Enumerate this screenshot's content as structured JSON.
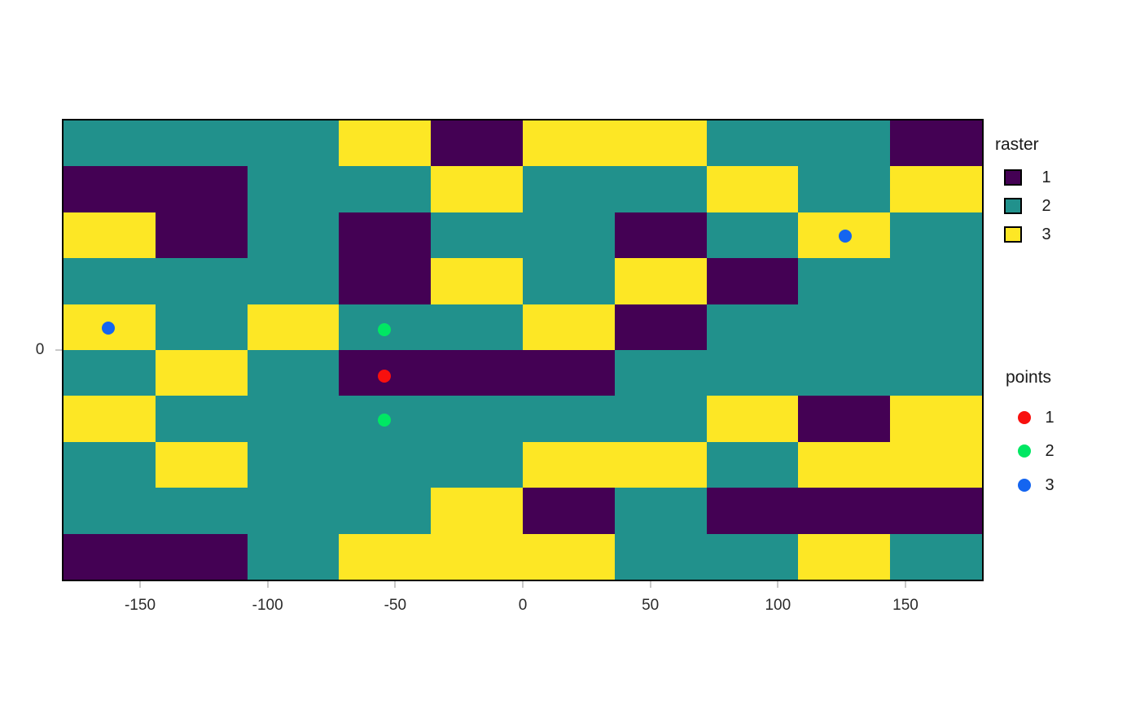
{
  "chart_data": {
    "type": "heatmap",
    "title": "",
    "xlabel": "",
    "ylabel": "",
    "x_range": [
      -180,
      180
    ],
    "y_range": [
      -90,
      90
    ],
    "x_ticks": [
      "-150",
      "-100",
      "-50",
      "0",
      "50",
      "100",
      "150"
    ],
    "x_tick_values": [
      -150,
      -100,
      -50,
      0,
      50,
      100,
      150
    ],
    "y_ticks": [
      "0"
    ],
    "y_tick_values": [
      0
    ],
    "grid_lines": "off",
    "raster": {
      "nrows": 10,
      "ncols": 10,
      "colors": {
        "1": "#440154",
        "2": "#21918c",
        "3": "#fde725"
      },
      "grid": [
        [
          2,
          2,
          2,
          3,
          1,
          3,
          3,
          2,
          2,
          1
        ],
        [
          1,
          1,
          2,
          2,
          3,
          2,
          2,
          3,
          2,
          3
        ],
        [
          3,
          1,
          2,
          1,
          2,
          2,
          1,
          2,
          3,
          2
        ],
        [
          2,
          2,
          2,
          1,
          3,
          2,
          3,
          1,
          2,
          2
        ],
        [
          3,
          2,
          3,
          2,
          2,
          3,
          1,
          2,
          2,
          2
        ],
        [
          2,
          3,
          2,
          1,
          1,
          1,
          2,
          2,
          2,
          2
        ],
        [
          3,
          2,
          2,
          2,
          2,
          2,
          2,
          3,
          1,
          3
        ],
        [
          2,
          3,
          2,
          2,
          2,
          3,
          3,
          2,
          3,
          3
        ],
        [
          2,
          2,
          2,
          2,
          3,
          1,
          2,
          1,
          1,
          1
        ],
        [
          1,
          1,
          2,
          3,
          3,
          3,
          2,
          2,
          3,
          2
        ]
      ]
    },
    "point_colors": {
      "1": "#f8100e",
      "2": "#00e763",
      "3": "#1465f0"
    },
    "points": [
      {
        "category": 3,
        "lon": -162.3,
        "lat": 8.5
      },
      {
        "category": 3,
        "lon": 126.3,
        "lat": 44.7
      },
      {
        "category": 2,
        "lon": -54.2,
        "lat": 8.0
      },
      {
        "category": 1,
        "lon": -54.2,
        "lat": -10.3
      },
      {
        "category": 2,
        "lon": -54.2,
        "lat": -27.5
      }
    ],
    "legend_raster": {
      "title": "raster",
      "items": [
        {
          "label": "1",
          "color": "#440154"
        },
        {
          "label": "2",
          "color": "#21918c"
        },
        {
          "label": "3",
          "color": "#fde725"
        }
      ]
    },
    "legend_points": {
      "title": "points",
      "items": [
        {
          "label": "1",
          "color": "#f8100e"
        },
        {
          "label": "2",
          "color": "#00e763"
        },
        {
          "label": "3",
          "color": "#1465f0"
        }
      ]
    }
  }
}
